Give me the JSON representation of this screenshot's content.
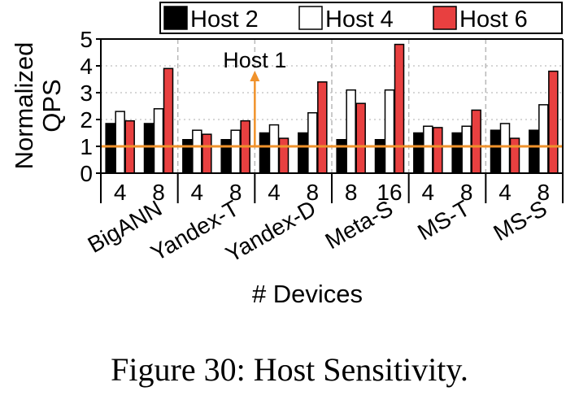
{
  "caption": "Figure 30: Host Sensitivity.",
  "chart_data": {
    "type": "bar",
    "ylabel_lines": [
      "Normalized",
      "QPS"
    ],
    "xlabel": "# Devices",
    "ylim": [
      0,
      5
    ],
    "yticks": [
      0,
      1,
      2,
      3,
      4,
      5
    ],
    "grid": "horizontal dotted",
    "legend_placement": "top-right",
    "groups": [
      "BigANN",
      "Yandex-T",
      "Yandex-D",
      "Meta-S",
      "MS-T",
      "MS-S"
    ],
    "devices": [
      [
        "4",
        "8"
      ],
      [
        "4",
        "8"
      ],
      [
        "4",
        "8"
      ],
      [
        "8",
        "16"
      ],
      [
        "4",
        "8"
      ],
      [
        "4",
        "8"
      ]
    ],
    "series": [
      {
        "name": "Host 2",
        "color": "#000000",
        "values": [
          1.85,
          1.85,
          1.25,
          1.25,
          1.5,
          1.5,
          1.25,
          1.25,
          1.5,
          1.5,
          1.6,
          1.6
        ]
      },
      {
        "name": "Host 4",
        "color": "#ffffff",
        "values": [
          2.3,
          2.4,
          1.6,
          1.6,
          1.8,
          2.25,
          3.1,
          3.1,
          1.75,
          1.75,
          1.85,
          2.55
        ]
      },
      {
        "name": "Host 6",
        "color": "#e84040",
        "values": [
          1.95,
          3.9,
          1.45,
          1.95,
          1.3,
          3.4,
          2.6,
          4.8,
          1.7,
          2.35,
          1.3,
          3.8
        ]
      }
    ],
    "reference_line": {
      "y": 1,
      "label": "Host 1",
      "color": "#f0922b"
    }
  }
}
